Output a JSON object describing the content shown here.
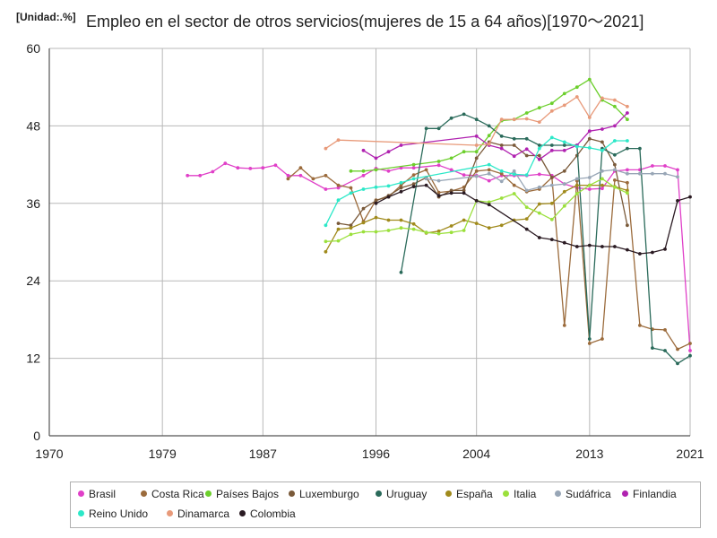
{
  "chart_data": {
    "type": "line",
    "unit_label": "[Unidad:.%]",
    "title": "Empleo en el sector de otros servicios(mujeres de 15 a 64 años)[1970～2021]",
    "xlabel": "",
    "ylabel": "",
    "xlim": [
      1970,
      2021
    ],
    "ylim": [
      0,
      60
    ],
    "x_ticks": [
      "1970",
      "1979",
      "1987",
      "1996",
      "2004",
      "2013",
      "2021"
    ],
    "y_ticks": [
      "0",
      "12",
      "24",
      "36",
      "48",
      "60"
    ],
    "grid": true,
    "legend_position": "bottom",
    "series": [
      {
        "name": "Brasil",
        "color": "#e040c8",
        "points": [
          [
            1981,
            40.3
          ],
          [
            1982,
            40.3
          ],
          [
            1983,
            40.9
          ],
          [
            1984,
            42.2
          ],
          [
            1985,
            41.5
          ],
          [
            1986,
            41.4
          ],
          [
            1987,
            41.5
          ],
          [
            1988,
            41.9
          ],
          [
            1989,
            40.3
          ],
          [
            1990,
            40.3
          ],
          [
            1992,
            38.2
          ],
          [
            1993,
            38.4
          ],
          [
            1995,
            40.3
          ],
          [
            1996,
            41.4
          ],
          [
            1997,
            41.0
          ],
          [
            1998,
            41.5
          ],
          [
            1999,
            41.5
          ],
          [
            2001,
            41.9
          ],
          [
            2002,
            41.2
          ],
          [
            2003,
            40.4
          ],
          [
            2004,
            40.3
          ],
          [
            2005,
            39.5
          ],
          [
            2006,
            40.3
          ],
          [
            2007,
            40.3
          ],
          [
            2008,
            40.3
          ],
          [
            2009,
            40.5
          ],
          [
            2010,
            40.3
          ],
          [
            2011,
            39.0
          ],
          [
            2012,
            38.4
          ],
          [
            2013,
            38.2
          ],
          [
            2014,
            38.3
          ],
          [
            2015,
            41.0
          ],
          [
            2016,
            41.2
          ],
          [
            2017,
            41.2
          ],
          [
            2018,
            41.8
          ],
          [
            2019,
            41.8
          ],
          [
            2020,
            41.2
          ],
          [
            2021,
            13.2
          ]
        ]
      },
      {
        "name": "Costa Rica",
        "color": "#9b6b3c",
        "points": [
          [
            1989,
            39.8
          ],
          [
            1990,
            41.5
          ],
          [
            1991,
            39.8
          ],
          [
            1992,
            40.3
          ],
          [
            1993,
            38.8
          ],
          [
            1994,
            38.4
          ],
          [
            1995,
            33.2
          ],
          [
            1996,
            36.5
          ],
          [
            1997,
            37.0
          ],
          [
            1998,
            38.8
          ],
          [
            1999,
            40.4
          ],
          [
            2000,
            41.2
          ],
          [
            2001,
            37.7
          ],
          [
            2002,
            37.9
          ],
          [
            2003,
            38.5
          ],
          [
            2004,
            41.0
          ],
          [
            2005,
            41.2
          ],
          [
            2006,
            40.6
          ],
          [
            2007,
            38.8
          ],
          [
            2008,
            37.8
          ],
          [
            2009,
            38.2
          ],
          [
            2010,
            40.0
          ],
          [
            2011,
            17.1
          ],
          [
            2012,
            39.5
          ],
          [
            2013,
            14.3
          ],
          [
            2014,
            15.0
          ],
          [
            2015,
            39.6
          ],
          [
            2016,
            39.2
          ],
          [
            2017,
            17.1
          ],
          [
            2018,
            16.5
          ],
          [
            2019,
            16.4
          ],
          [
            2020,
            13.4
          ],
          [
            2021,
            14.3
          ]
        ]
      },
      {
        "name": "Países Bajos",
        "color": "#6ccf2c",
        "points": [
          [
            1994,
            41.0
          ],
          [
            1995,
            41.0
          ],
          [
            1996,
            41.2
          ],
          [
            1999,
            42.0
          ],
          [
            2001,
            42.5
          ],
          [
            2002,
            43.0
          ],
          [
            2003,
            44.0
          ],
          [
            2004,
            44.0
          ],
          [
            2005,
            46.5
          ],
          [
            2006,
            48.8
          ],
          [
            2007,
            49.0
          ],
          [
            2008,
            50.0
          ],
          [
            2009,
            50.8
          ],
          [
            2010,
            51.5
          ],
          [
            2011,
            53.0
          ],
          [
            2012,
            54.0
          ],
          [
            2013,
            55.2
          ],
          [
            2014,
            52.0
          ],
          [
            2015,
            51.0
          ],
          [
            2016,
            49.0
          ]
        ]
      },
      {
        "name": "Luxemburgo",
        "color": "#7a5a3a",
        "points": [
          [
            1993,
            32.9
          ],
          [
            1994,
            32.6
          ],
          [
            1995,
            35.2
          ],
          [
            1996,
            36.4
          ],
          [
            1997,
            37.2
          ],
          [
            1998,
            38.4
          ],
          [
            1999,
            39.0
          ],
          [
            2000,
            40.0
          ],
          [
            2001,
            37.0
          ],
          [
            2002,
            38.0
          ],
          [
            2003,
            38.0
          ],
          [
            2004,
            43.0
          ],
          [
            2005,
            45.5
          ],
          [
            2006,
            45.0
          ],
          [
            2007,
            45.0
          ],
          [
            2008,
            43.4
          ],
          [
            2009,
            43.4
          ],
          [
            2010,
            40.0
          ],
          [
            2011,
            41.0
          ],
          [
            2012,
            43.4
          ],
          [
            2013,
            46.0
          ],
          [
            2014,
            45.5
          ],
          [
            2015,
            42.0
          ],
          [
            2016,
            32.6
          ]
        ]
      },
      {
        "name": "Uruguay",
        "color": "#2a6a5a",
        "points": [
          [
            1998,
            25.3
          ],
          [
            2000,
            47.6
          ],
          [
            2001,
            47.6
          ],
          [
            2002,
            49.2
          ],
          [
            2003,
            49.8
          ],
          [
            2004,
            49.0
          ],
          [
            2005,
            48.0
          ],
          [
            2006,
            46.4
          ],
          [
            2007,
            46.0
          ],
          [
            2008,
            46.0
          ],
          [
            2009,
            45.0
          ],
          [
            2010,
            45.0
          ],
          [
            2011,
            45.0
          ],
          [
            2012,
            45.0
          ],
          [
            2013,
            15.0
          ],
          [
            2014,
            44.5
          ],
          [
            2015,
            43.5
          ],
          [
            2016,
            44.5
          ],
          [
            2017,
            44.5
          ],
          [
            2018,
            13.6
          ],
          [
            2019,
            13.2
          ],
          [
            2020,
            11.2
          ],
          [
            2021,
            12.4
          ]
        ]
      },
      {
        "name": "España",
        "color": "#a08a1c",
        "points": [
          [
            1992,
            28.5
          ],
          [
            1993,
            32.0
          ],
          [
            1994,
            32.2
          ],
          [
            1995,
            33.0
          ],
          [
            1996,
            33.8
          ],
          [
            1997,
            33.4
          ],
          [
            1998,
            33.4
          ],
          [
            1999,
            32.8
          ],
          [
            2000,
            31.4
          ],
          [
            2001,
            31.7
          ],
          [
            2002,
            32.5
          ],
          [
            2003,
            33.4
          ],
          [
            2004,
            32.9
          ],
          [
            2005,
            32.2
          ],
          [
            2006,
            32.6
          ],
          [
            2007,
            33.4
          ],
          [
            2008,
            33.6
          ],
          [
            2009,
            35.9
          ],
          [
            2010,
            36.0
          ],
          [
            2011,
            37.8
          ],
          [
            2012,
            38.8
          ],
          [
            2013,
            38.8
          ],
          [
            2014,
            38.8
          ],
          [
            2015,
            38.6
          ],
          [
            2016,
            38.0
          ]
        ]
      },
      {
        "name": "Italia",
        "color": "#9be03c",
        "points": [
          [
            1992,
            30.1
          ],
          [
            1993,
            30.2
          ],
          [
            1994,
            31.2
          ],
          [
            1995,
            31.6
          ],
          [
            1996,
            31.6
          ],
          [
            1997,
            31.8
          ],
          [
            1998,
            32.2
          ],
          [
            1999,
            32.0
          ],
          [
            2000,
            31.5
          ],
          [
            2001,
            31.3
          ],
          [
            2002,
            31.5
          ],
          [
            2003,
            31.8
          ],
          [
            2004,
            36.4
          ],
          [
            2005,
            36.2
          ],
          [
            2006,
            36.8
          ],
          [
            2007,
            37.5
          ],
          [
            2008,
            35.4
          ],
          [
            2009,
            34.5
          ],
          [
            2010,
            33.5
          ],
          [
            2011,
            35.6
          ],
          [
            2012,
            37.5
          ],
          [
            2013,
            38.8
          ],
          [
            2014,
            39.8
          ],
          [
            2015,
            38.5
          ],
          [
            2016,
            37.6
          ]
        ]
      },
      {
        "name": "Sudáfrica",
        "color": "#98a6b6",
        "points": [
          [
            2000,
            39.8
          ],
          [
            2001,
            39.5
          ],
          [
            2004,
            40.2
          ],
          [
            2005,
            40.6
          ],
          [
            2006,
            39.4
          ],
          [
            2007,
            41.0
          ],
          [
            2008,
            38.0
          ],
          [
            2009,
            38.5
          ],
          [
            2010,
            38.8
          ],
          [
            2011,
            39.0
          ],
          [
            2012,
            39.8
          ],
          [
            2013,
            40.0
          ],
          [
            2014,
            41.0
          ],
          [
            2015,
            41.2
          ],
          [
            2016,
            40.6
          ],
          [
            2017,
            40.6
          ],
          [
            2018,
            40.6
          ],
          [
            2019,
            40.6
          ],
          [
            2020,
            40.1
          ]
        ]
      },
      {
        "name": "Finlandia",
        "color": "#b022b0",
        "points": [
          [
            1995,
            44.2
          ],
          [
            1996,
            43.0
          ],
          [
            1997,
            44.0
          ],
          [
            1998,
            45.0
          ],
          [
            2004,
            46.4
          ],
          [
            2005,
            45.0
          ],
          [
            2006,
            44.5
          ],
          [
            2007,
            43.3
          ],
          [
            2008,
            44.4
          ],
          [
            2009,
            42.8
          ],
          [
            2010,
            44.2
          ],
          [
            2011,
            44.2
          ],
          [
            2012,
            45.0
          ],
          [
            2013,
            47.2
          ],
          [
            2014,
            47.5
          ],
          [
            2015,
            48.0
          ],
          [
            2016,
            50.0
          ]
        ]
      },
      {
        "name": "Reino Unido",
        "color": "#2ce8c8",
        "points": [
          [
            1992,
            32.6
          ],
          [
            1993,
            36.5
          ],
          [
            1994,
            37.6
          ],
          [
            1995,
            38.2
          ],
          [
            1996,
            38.5
          ],
          [
            1997,
            38.7
          ],
          [
            1998,
            39.2
          ],
          [
            1999,
            39.8
          ],
          [
            2005,
            42.0
          ],
          [
            2006,
            41.0
          ],
          [
            2007,
            40.5
          ],
          [
            2008,
            40.4
          ],
          [
            2009,
            44.5
          ],
          [
            2010,
            46.2
          ],
          [
            2011,
            45.5
          ],
          [
            2012,
            44.8
          ],
          [
            2013,
            44.6
          ],
          [
            2014,
            44.2
          ],
          [
            2015,
            45.7
          ],
          [
            2016,
            45.7
          ]
        ]
      },
      {
        "name": "Dinamarca",
        "color": "#e89a7a",
        "points": [
          [
            1992,
            44.5
          ],
          [
            1993,
            45.8
          ],
          [
            2004,
            45.0
          ],
          [
            2005,
            45.2
          ],
          [
            2006,
            49.0
          ],
          [
            2007,
            49.0
          ],
          [
            2008,
            49.1
          ],
          [
            2009,
            48.6
          ],
          [
            2010,
            50.3
          ],
          [
            2011,
            51.2
          ],
          [
            2012,
            52.5
          ],
          [
            2013,
            49.3
          ],
          [
            2014,
            52.3
          ],
          [
            2015,
            52.0
          ],
          [
            2016,
            51.0
          ]
        ]
      },
      {
        "name": "Colombia",
        "color": "#2a1a22",
        "points": [
          [
            1996,
            36.0
          ],
          [
            1997,
            37.0
          ],
          [
            1998,
            37.8
          ],
          [
            1999,
            38.6
          ],
          [
            2000,
            38.8
          ],
          [
            2001,
            37.2
          ],
          [
            2002,
            37.6
          ],
          [
            2003,
            37.6
          ],
          [
            2004,
            36.4
          ],
          [
            2005,
            35.8
          ],
          [
            2008,
            32.0
          ],
          [
            2009,
            30.7
          ],
          [
            2010,
            30.4
          ],
          [
            2011,
            29.9
          ],
          [
            2012,
            29.3
          ],
          [
            2013,
            29.5
          ],
          [
            2014,
            29.3
          ],
          [
            2015,
            29.3
          ],
          [
            2016,
            28.8
          ],
          [
            2017,
            28.2
          ],
          [
            2018,
            28.4
          ],
          [
            2019,
            28.9
          ],
          [
            2020,
            36.4
          ],
          [
            2021,
            37.0
          ]
        ]
      }
    ]
  }
}
